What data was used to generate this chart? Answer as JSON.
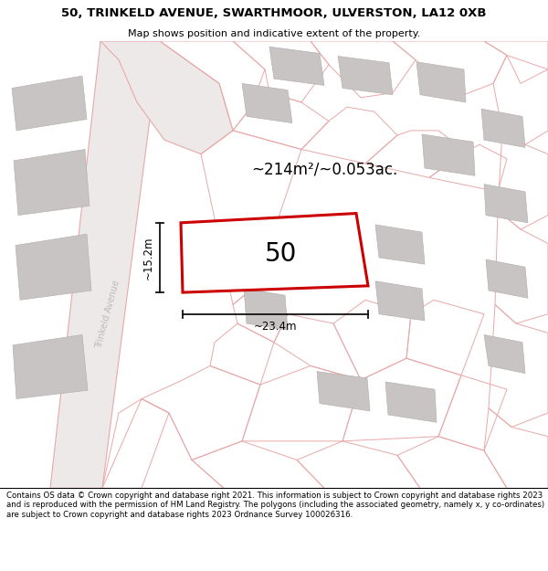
{
  "title": "50, TRINKELD AVENUE, SWARTHMOOR, ULVERSTON, LA12 0XB",
  "subtitle": "Map shows position and indicative extent of the property.",
  "footer": "Contains OS data © Crown copyright and database right 2021. This information is subject to Crown copyright and database rights 2023 and is reproduced with the permission of HM Land Registry. The polygons (including the associated geometry, namely x, y co-ordinates) are subject to Crown copyright and database rights 2023 Ordnance Survey 100026316.",
  "area_label": "~214m²/~0.053ac.",
  "width_label": "~23.4m",
  "height_label": "~15.2m",
  "plot_number": "50",
  "map_bg": "#f2eeee",
  "plot_fill": "#ffffff",
  "plot_edge_color": "#cc0000",
  "building_fill": "#c8c4c4",
  "pink_line_color": "#e8a8a8",
  "road_fill": "#ede9e9",
  "dim_line_color": "#111111",
  "street_label_color": "#bbbbbb",
  "street_label": "Trinkeld Avenue",
  "title_fontsize": 9.5,
  "subtitle_fontsize": 8,
  "footer_fontsize": 6.2,
  "area_fontsize": 12,
  "plot_num_fontsize": 20,
  "dim_fontsize": 8.5
}
